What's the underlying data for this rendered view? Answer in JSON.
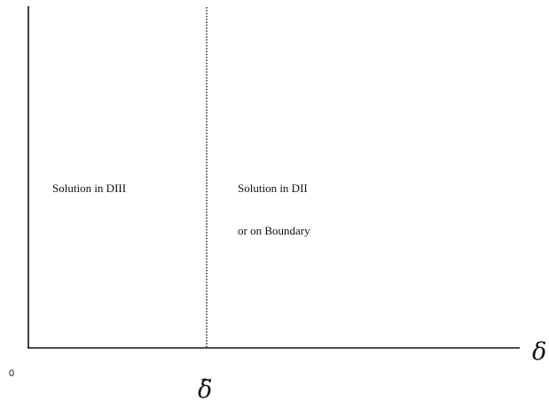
{
  "diagram": {
    "origin_label": "0",
    "x_axis_symbol": "δ",
    "threshold_symbol": "δ",
    "threshold_tilde": "~",
    "left_region": {
      "line1": "Solution in DIII"
    },
    "right_region": {
      "line1": "Solution in DII",
      "line2": "or on Boundary"
    }
  }
}
